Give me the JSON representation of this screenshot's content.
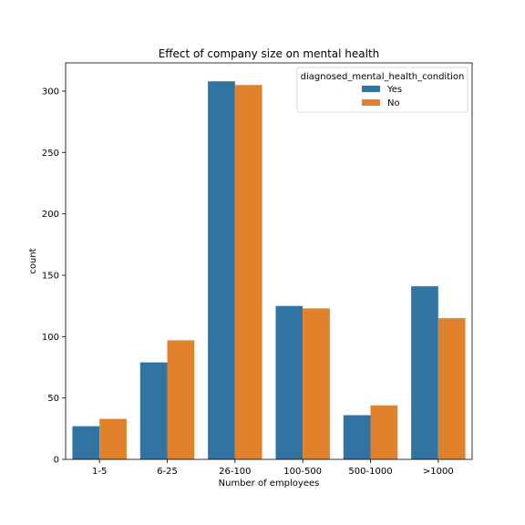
{
  "chart_data": {
    "type": "bar",
    "title": "Effect of company size on mental health",
    "xlabel": "Number of employees",
    "ylabel": "count",
    "categories": [
      "1-5",
      "6-25",
      "26-100",
      "100-500",
      "500-1000",
      ">1000"
    ],
    "series": [
      {
        "name": "Yes",
        "color": "#3274a1",
        "values": [
          27,
          79,
          308,
          125,
          36,
          141
        ]
      },
      {
        "name": "No",
        "color": "#e1812c",
        "values": [
          33,
          97,
          305,
          123,
          44,
          115
        ]
      }
    ],
    "ylim": [
      0,
      323
    ],
    "yticks": [
      0,
      50,
      100,
      150,
      200,
      250,
      300
    ],
    "legend": {
      "title": "diagnosed_mental_health_condition",
      "placement": "top-right"
    },
    "grid": false
  }
}
